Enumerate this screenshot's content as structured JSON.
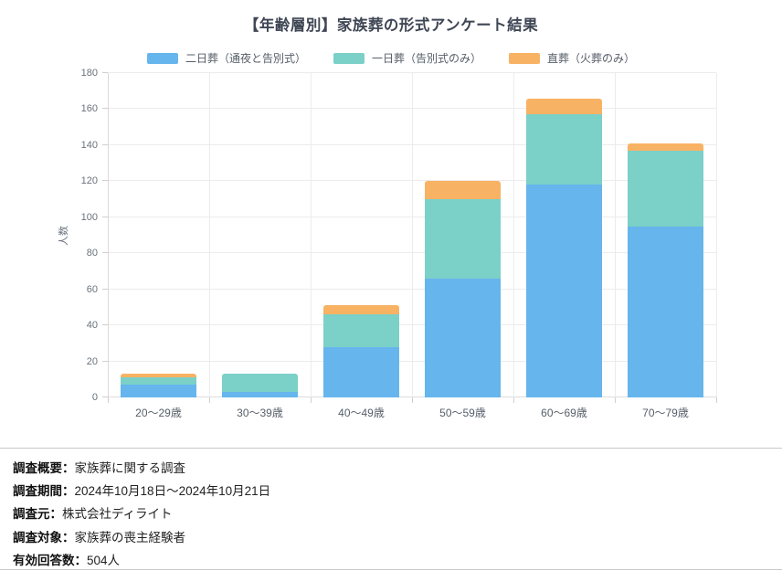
{
  "title": "【年齢層別】家族葬の形式アンケート結果",
  "chart_data": {
    "type": "bar",
    "stacked": true,
    "title": "【年齢層別】家族葬の形式アンケート結果",
    "categories": [
      "20～29歳",
      "30～39歳",
      "40～49歳",
      "50～59歳",
      "60～69歳",
      "70～79歳"
    ],
    "series": [
      {
        "name": "二日葬（通夜と告別式）",
        "color": "#66B5EC",
        "values": [
          7,
          3,
          28,
          66,
          118,
          95
        ]
      },
      {
        "name": "一日葬（告別式のみ）",
        "color": "#7BD0C8",
        "values": [
          4,
          10,
          18,
          44,
          39,
          42
        ]
      },
      {
        "name": "直葬（火葬のみ）",
        "color": "#F8B264",
        "values": [
          2,
          0,
          5,
          10,
          9,
          4
        ]
      }
    ],
    "xlabel": "",
    "ylabel": "人数",
    "ylim": [
      0,
      180
    ],
    "ytick_step": 20,
    "grid": true,
    "legend_position": "top"
  },
  "footer": {
    "items": [
      {
        "label": "調査概要：",
        "value": "家族葬に関する調査"
      },
      {
        "label": "調査期間：",
        "value": "2024年10月18日～2024年10月21日"
      },
      {
        "label": "調査元：",
        "value": "株式会社ディライト"
      },
      {
        "label": "調査対象：",
        "value": "家族葬の喪主経験者"
      },
      {
        "label": "有効回答数：",
        "value": "504人"
      }
    ]
  }
}
